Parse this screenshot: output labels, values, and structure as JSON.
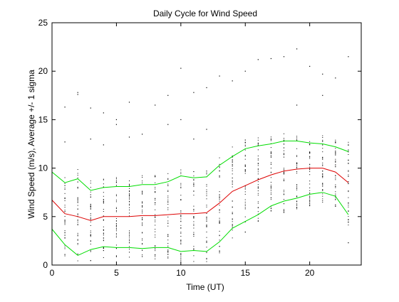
{
  "chart_data": {
    "type": "line",
    "title": "Daily Cycle for Wind Speed",
    "xlabel": "Time (UT)",
    "ylabel": "Wind Speed (m/s), Average +/- 1 sigma",
    "xlim": [
      0,
      24
    ],
    "ylim": [
      0,
      25
    ],
    "xticks": [
      0,
      5,
      10,
      15,
      20
    ],
    "yticks": [
      0,
      5,
      10,
      15,
      20,
      25
    ],
    "grid": false,
    "colors": {
      "mean": "#dd0000",
      "sigma": "#00dd00",
      "points": "#000000"
    },
    "x": [
      0,
      1,
      2,
      3,
      4,
      5,
      6,
      7,
      8,
      9,
      10,
      11,
      12,
      13,
      14,
      15,
      16,
      17,
      18,
      19,
      20,
      21,
      22,
      23
    ],
    "series": [
      {
        "role": "mean",
        "values": [
          6.7,
          5.3,
          5.0,
          4.6,
          5.0,
          5.0,
          5.0,
          5.1,
          5.1,
          5.2,
          5.3,
          5.3,
          5.4,
          6.4,
          7.6,
          8.2,
          8.8,
          9.3,
          9.7,
          9.9,
          10.0,
          10.0,
          9.6,
          8.5
        ]
      },
      {
        "role": "mean-plus-sigma",
        "values": [
          9.6,
          8.5,
          8.9,
          7.7,
          8.0,
          8.1,
          8.1,
          8.3,
          8.3,
          8.6,
          9.2,
          9.0,
          9.1,
          10.3,
          11.2,
          12.0,
          12.3,
          12.5,
          12.8,
          12.8,
          12.6,
          12.5,
          12.2,
          11.7
        ]
      },
      {
        "role": "mean-minus-sigma",
        "values": [
          3.7,
          2.1,
          1.0,
          1.6,
          1.9,
          1.8,
          1.8,
          1.7,
          1.8,
          1.8,
          1.4,
          1.5,
          1.4,
          2.4,
          3.8,
          4.5,
          5.2,
          6.1,
          6.6,
          6.9,
          7.3,
          7.5,
          7.1,
          5.2
        ]
      }
    ],
    "scatter_outliers": [
      [
        1,
        16.3
      ],
      [
        1,
        12.7
      ],
      [
        2,
        17.8
      ],
      [
        2,
        17.6
      ],
      [
        3,
        16.2
      ],
      [
        3,
        13.0
      ],
      [
        4,
        15.7
      ],
      [
        4,
        12.4
      ],
      [
        5,
        15.0
      ],
      [
        5,
        14.5
      ],
      [
        6,
        16.8
      ],
      [
        6,
        13.2
      ],
      [
        7,
        13.5
      ],
      [
        8,
        16.5
      ],
      [
        9,
        17.5
      ],
      [
        9,
        14.5
      ],
      [
        10,
        20.3
      ],
      [
        10,
        15.0
      ],
      [
        11,
        17.8
      ],
      [
        11,
        13.0
      ],
      [
        12,
        18.3
      ],
      [
        12,
        14.0
      ],
      [
        13,
        19.5
      ],
      [
        14,
        19.0
      ],
      [
        15,
        20.0
      ],
      [
        16,
        21.2
      ],
      [
        17,
        21.3
      ],
      [
        18,
        21.5
      ],
      [
        19,
        22.3
      ],
      [
        19,
        16.5
      ],
      [
        20,
        20.5
      ],
      [
        21,
        19.7
      ],
      [
        21,
        17.5
      ],
      [
        22,
        19.3
      ],
      [
        23,
        21.5
      ],
      [
        23,
        2.3
      ]
    ]
  }
}
